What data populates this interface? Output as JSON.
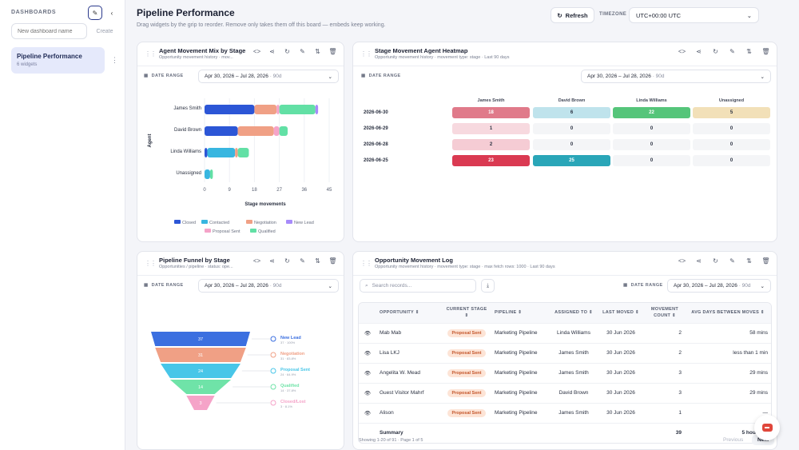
{
  "sidebar": {
    "heading": "DASHBOARDS",
    "new_placeholder": "New dashboard name",
    "create_label": "Create",
    "items": [
      {
        "title": "Pipeline Performance",
        "subtitle": "6 widgets"
      }
    ]
  },
  "header": {
    "title": "Pipeline Performance",
    "subtitle": "Drag widgets by the grip to reorder. Remove only takes them off this board — embeds keep working.",
    "refresh_label": "Refresh",
    "timezone_label": "TIMEZONE",
    "timezone_value": "UTC+00:00 UTC"
  },
  "date_range": {
    "label": "DATE RANGE",
    "value": "Apr 30, 2026 – Jul 28, 2026",
    "span": "· 90d"
  },
  "widgets": {
    "mix": {
      "title": "Agent Movement Mix by Stage",
      "subtitle": "Opportunity movement history · mov..."
    },
    "heatmap": {
      "title": "Stage Movement Agent Heatmap",
      "subtitle": "Opportunity movement history · movement type: stage · Last 90 days"
    },
    "funnel": {
      "title": "Pipeline Funnel by Stage",
      "subtitle": "Opportunities / pipeline · status: ope..."
    },
    "log": {
      "title": "Opportunity Movement Log",
      "subtitle": "Opportunity movement history · movement type: stage · max fetch rows: 1000 · Last 90 days"
    }
  },
  "colors": {
    "Closed": "#2c56d6",
    "Contacted": "#38b6e0",
    "Negotiation": "#f0a085",
    "New Lead": "#a78bfa",
    "Proposal Sent": "#f5a3c8",
    "Qualified": "#62e0a5"
  },
  "chart_data": [
    {
      "type": "bar",
      "orientation": "horizontal",
      "stacked": true,
      "categories": [
        "James Smith",
        "David Brown",
        "Linda Williams",
        "Unassigned"
      ],
      "series": [
        {
          "name": "Closed",
          "values": [
            18,
            12,
            1,
            0
          ]
        },
        {
          "name": "Contacted",
          "values": [
            0,
            0,
            10,
            2
          ]
        },
        {
          "name": "Negotiation",
          "values": [
            8,
            13,
            1,
            0
          ]
        },
        {
          "name": "Proposal Sent",
          "values": [
            1,
            2,
            0,
            0
          ]
        },
        {
          "name": "Qualified",
          "values": [
            13,
            3,
            4,
            1
          ]
        },
        {
          "name": "New Lead",
          "values": [
            1,
            0,
            0,
            0
          ]
        }
      ],
      "legend_order": [
        "Closed",
        "Contacted",
        "Negotiation",
        "New Lead",
        "Proposal Sent",
        "Qualified"
      ],
      "xlabel": "Stage movements",
      "ylabel": "Agent",
      "xticks": [
        0,
        9,
        18,
        27,
        36,
        45
      ],
      "xlim": [
        0,
        45
      ],
      "legend": "bottom"
    },
    {
      "type": "heatmap",
      "columns": [
        "James Smith",
        "David Brown",
        "Linda Williams",
        "Unassigned"
      ],
      "rows": [
        "2026-06-30",
        "2026-06-29",
        "2026-06-28",
        "2026-06-25"
      ],
      "values": [
        [
          18,
          6,
          22,
          5
        ],
        [
          1,
          0,
          0,
          0
        ],
        [
          2,
          0,
          0,
          0
        ],
        [
          23,
          25,
          0,
          0
        ]
      ],
      "cell_colors": [
        [
          "#e07a8a",
          "#bfe3ec",
          "#55c57a",
          "#f2e0b8"
        ],
        [
          "#f7d9df",
          "#f4f5f7",
          "#f4f5f7",
          "#f4f5f7"
        ],
        [
          "#f5ccd4",
          "#f4f5f7",
          "#f4f5f7",
          "#f4f5f7"
        ],
        [
          "#da3a52",
          "#2aa6b8",
          "#f4f5f7",
          "#f4f5f7"
        ]
      ]
    },
    {
      "type": "funnel",
      "stages": [
        {
          "name": "New Lead",
          "value": 37,
          "pct": "37 · 100%",
          "color": "#3b6fe0"
        },
        {
          "name": "Negotiation",
          "value": 31,
          "pct": "31 · 83.8%",
          "color": "#f0a085"
        },
        {
          "name": "Proposal Sent",
          "value": 24,
          "pct": "24 · 64.9%",
          "color": "#48c6e8"
        },
        {
          "name": "Qualified",
          "value": 14,
          "pct": "14 · 37.8%",
          "color": "#6fe3a8"
        },
        {
          "name": "Closed/Lost",
          "value": 3,
          "pct": "3 · 8.1%",
          "color": "#f5a3c8"
        }
      ]
    }
  ],
  "table": {
    "search_placeholder": "Search records...",
    "headers": [
      "OPPORTUNITY",
      "CURRENT STAGE",
      "PIPELINE",
      "ASSIGNED TO",
      "LAST MOVED",
      "MOVEMENT COUNT",
      "AVG DAYS BETWEEN MOVES"
    ],
    "rows": [
      {
        "opportunity": "Mab Mab",
        "stage": "Proposal Sent",
        "pipeline": "Marketing Pipeline",
        "assigned": "Linda Williams",
        "moved": "30 Jun 2026",
        "count": "2",
        "avg": "58 mins"
      },
      {
        "opportunity": "Lisa LKJ",
        "stage": "Proposal Sent",
        "pipeline": "Marketing Pipeline",
        "assigned": "James Smith",
        "moved": "30 Jun 2026",
        "count": "2",
        "avg": "less than 1 min"
      },
      {
        "opportunity": "Angelita W. Mead",
        "stage": "Proposal Sent",
        "pipeline": "Marketing Pipeline",
        "assigned": "James Smith",
        "moved": "30 Jun 2026",
        "count": "3",
        "avg": "29 mins"
      },
      {
        "opportunity": "Guest Visitor Mahrf",
        "stage": "Proposal Sent",
        "pipeline": "Marketing Pipeline",
        "assigned": "David Brown",
        "moved": "30 Jun 2026",
        "count": "3",
        "avg": "29 mins"
      },
      {
        "opportunity": "Alison",
        "stage": "Proposal Sent",
        "pipeline": "Marketing Pipeline",
        "assigned": "James Smith",
        "moved": "30 Jun 2026",
        "count": "1",
        "avg": "—"
      }
    ],
    "summary_label": "Summary",
    "summary_count": "39",
    "summary_avg": "5 hours 38",
    "footer": "Showing 1-20 of 91 · Page 1 of 5",
    "prev_label": "Previous",
    "next_label": "Next"
  }
}
